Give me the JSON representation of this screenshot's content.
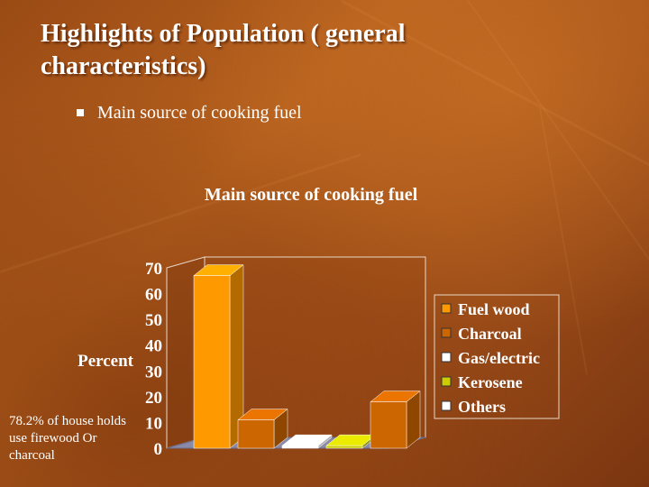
{
  "slide": {
    "title": "Highlights of Population ( general characteristics)",
    "bullet": "Main source of cooking fuel",
    "footnote": "78.2% of house holds use firewood Or charcoal"
  },
  "chart_data": {
    "type": "bar",
    "title": "Main source of cooking fuel",
    "ylabel": "Percent",
    "xlabel": "",
    "ylim": [
      0,
      70
    ],
    "yticks": [
      0,
      10,
      20,
      30,
      40,
      50,
      60,
      70
    ],
    "categories": [
      "Fuel wood",
      "Charcoal",
      "Gas/electric",
      "Kerosene",
      "Others"
    ],
    "values": [
      67,
      11,
      1,
      1,
      18
    ],
    "colors": [
      "#ff9900",
      "#cc6600",
      "#ffffff",
      "#cccc00",
      "#cc6600"
    ],
    "legend": {
      "placement": "right",
      "entries": [
        "Fuel wood",
        "Charcoal",
        "Gas/electric",
        "Kerosene",
        "Others"
      ],
      "swatch_colors": [
        "#ff9900",
        "#cc6600",
        "#ffffff",
        "#cccc00",
        "#ffffff"
      ]
    },
    "grid": false,
    "three_d": true
  }
}
